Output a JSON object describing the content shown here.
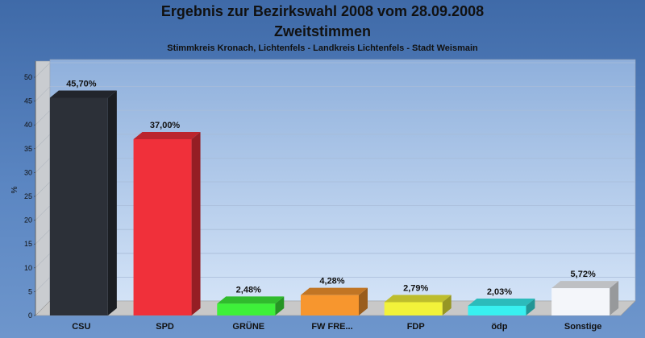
{
  "chart_data": {
    "type": "bar",
    "title": "Ergebnis zur Bezirkswahl 2008 vom 28.09.2008",
    "title2": "Zweitstimmen",
    "subtitle": "Stimmkreis Kronach, Lichtenfels - Landkreis Lichtenfels - Stadt Weismain",
    "ylabel": "%",
    "ylim": [
      0,
      50
    ],
    "yticks": [
      "0",
      "5",
      "10",
      "15",
      "20",
      "25",
      "30",
      "35",
      "40",
      "45",
      "50"
    ],
    "grid": true,
    "categories": [
      "CSU",
      "SPD",
      "GRÜNE",
      "FW FRE...",
      "FDP",
      "ödp",
      "Sonstige"
    ],
    "values": [
      45.7,
      37.0,
      2.48,
      4.28,
      2.79,
      2.03,
      5.72
    ],
    "value_labels": [
      "45,70%",
      "37,00%",
      "2,48%",
      "4,28%",
      "2,79%",
      "2,03%",
      "5,72%"
    ],
    "colors": [
      "#2c3038",
      "#f0303a",
      "#3ef03a",
      "#f7962e",
      "#f2f23a",
      "#38f0f0",
      "#f4f6fa"
    ]
  }
}
